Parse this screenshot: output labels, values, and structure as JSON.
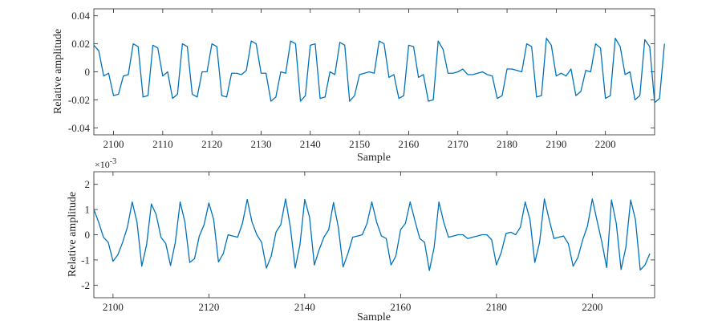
{
  "chart_data": [
    {
      "type": "line",
      "xlabel": "Sample",
      "ylabel": "Relative amplitude",
      "xlim": [
        2096,
        2210
      ],
      "ylim": [
        -0.045,
        0.045
      ],
      "xticks": [
        2100,
        2110,
        2120,
        2130,
        2140,
        2150,
        2160,
        2170,
        2180,
        2190,
        2200
      ],
      "xtick_labels": [
        "2100",
        "2110",
        "2120",
        "2130",
        "2140",
        "2150",
        "2160",
        "2170",
        "2180",
        "2190",
        "2200"
      ],
      "yticks": [
        -0.04,
        -0.02,
        0,
        0.02,
        0.04
      ],
      "ytick_labels": [
        "-0.04",
        "-0.02",
        "0",
        "0.02",
        "0.04"
      ],
      "grid": false,
      "line_color": "#0072BD",
      "x_start": 2096,
      "x_step": 1,
      "values": [
        0.019,
        0.015,
        -0.003,
        -0.001,
        -0.017,
        -0.016,
        -0.003,
        -0.002,
        0.02,
        0.018,
        -0.018,
        -0.017,
        0.019,
        0.017,
        -0.003,
        0.0,
        -0.019,
        -0.016,
        0.02,
        0.018,
        -0.016,
        -0.018,
        0.0,
        0.0,
        0.02,
        0.018,
        -0.017,
        -0.018,
        -0.001,
        -0.001,
        -0.002,
        0.001,
        0.022,
        0.02,
        -0.001,
        -0.001,
        -0.021,
        -0.018,
        0.0,
        -0.001,
        0.022,
        0.02,
        -0.021,
        -0.017,
        0.019,
        0.02,
        -0.019,
        -0.018,
        0.0,
        -0.002,
        0.021,
        0.019,
        -0.021,
        -0.017,
        -0.002,
        -0.001,
        0.0,
        -0.001,
        0.022,
        0.02,
        -0.004,
        -0.002,
        -0.019,
        -0.017,
        0.019,
        0.018,
        -0.004,
        -0.002,
        -0.021,
        -0.02,
        0.022,
        0.016,
        -0.001,
        -0.001,
        0.0,
        0.002,
        -0.002,
        -0.002,
        -0.001,
        0.0,
        -0.002,
        -0.003,
        -0.019,
        -0.017,
        0.002,
        0.002,
        0.001,
        0.0,
        0.02,
        0.018,
        -0.018,
        -0.017,
        0.024,
        0.019,
        -0.003,
        -0.001,
        -0.003,
        0.002,
        -0.017,
        -0.014,
        0.001,
        0.0,
        0.02,
        0.017,
        -0.019,
        -0.017,
        0.024,
        0.018,
        -0.002,
        0.0,
        -0.02,
        -0.017,
        0.023,
        0.018,
        -0.022,
        -0.019,
        0.02
      ]
    },
    {
      "type": "line",
      "xlabel": "Sample",
      "ylabel": "Relative amplitude",
      "exponent_label": "×10",
      "exponent_power": "-3",
      "xlim": [
        2096,
        2213
      ],
      "ylim": [
        -2.5,
        2.5
      ],
      "xticks": [
        2100,
        2120,
        2140,
        2160,
        2180,
        2200
      ],
      "xtick_labels": [
        "2100",
        "2120",
        "2140",
        "2160",
        "2180",
        "2200"
      ],
      "yticks": [
        -2,
        -1,
        0,
        1,
        2
      ],
      "ytick_labels": [
        "-2",
        "-1",
        "0",
        "1",
        "2"
      ],
      "grid": false,
      "line_color": "#0072BD",
      "x_start": 2096,
      "x_step": 1,
      "values": [
        1.0,
        0.5,
        -0.1,
        -0.3,
        -1.05,
        -0.8,
        -0.3,
        0.3,
        1.3,
        0.5,
        -1.25,
        -0.4,
        1.22,
        0.8,
        -0.1,
        -0.35,
        -1.22,
        -0.3,
        1.3,
        0.5,
        -1.1,
        -0.95,
        -0.05,
        0.4,
        1.26,
        0.6,
        -1.08,
        -0.75,
        0.0,
        -0.05,
        -0.1,
        0.45,
        1.4,
        0.5,
        0.0,
        -0.3,
        -1.32,
        -0.85,
        0.1,
        0.4,
        1.42,
        0.3,
        -1.32,
        -0.4,
        1.4,
        0.7,
        -1.2,
        -0.6,
        -0.1,
        0.2,
        1.28,
        0.3,
        -1.28,
        -0.75,
        -0.1,
        -0.05,
        0.0,
        0.45,
        1.3,
        0.5,
        -0.05,
        -0.15,
        -1.2,
        -0.85,
        0.2,
        0.45,
        1.3,
        0.55,
        -0.15,
        -0.3,
        -1.42,
        -0.5,
        1.3,
        0.5,
        -0.1,
        -0.05,
        0.0,
        0.0,
        -0.15,
        -0.1,
        -0.05,
        0.0,
        0.0,
        -0.2,
        -1.2,
        -0.7,
        0.05,
        0.1,
        0.0,
        0.3,
        1.3,
        0.6,
        -1.1,
        -0.3,
        1.42,
        0.6,
        -0.15,
        -0.1,
        -0.05,
        -0.35,
        -1.25,
        -0.9,
        -0.2,
        0.35,
        1.42,
        0.55,
        -0.3,
        -1.3,
        1.38,
        0.45,
        -1.38,
        -0.5,
        1.38,
        0.6,
        -1.4,
        -1.2,
        -0.75
      ]
    }
  ]
}
